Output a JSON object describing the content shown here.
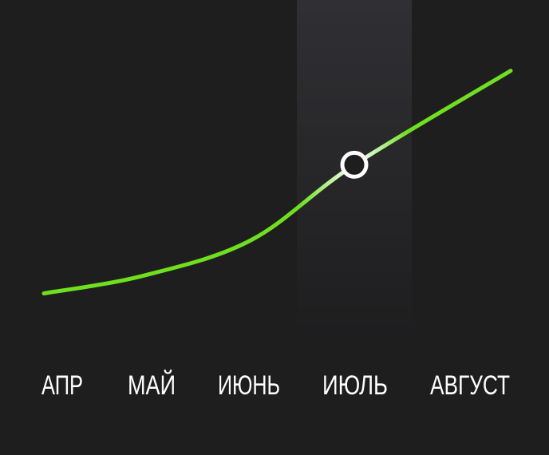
{
  "chart_data": {
    "type": "line",
    "categories": [
      "АПР",
      "МАЙ",
      "ИЮНЬ",
      "ИЮЛЬ",
      "АВГУСТ"
    ],
    "series": [
      {
        "values": [
          1.0,
          2.8,
          6.4,
          14.0,
          23.5
        ]
      }
    ],
    "selected_index": 3,
    "ylim": [
      0,
      25
    ],
    "grid": false,
    "colors": {
      "background": "#1e1e1f",
      "line": "#6fe01e",
      "line_highlight": "#ffffff",
      "marker_fill": "#1e1e1f",
      "marker_stroke": "#ffffff",
      "highlight_band_top": "#303034",
      "highlight_band_bottom": "#1e1e1f",
      "label": "#ffffff"
    }
  }
}
